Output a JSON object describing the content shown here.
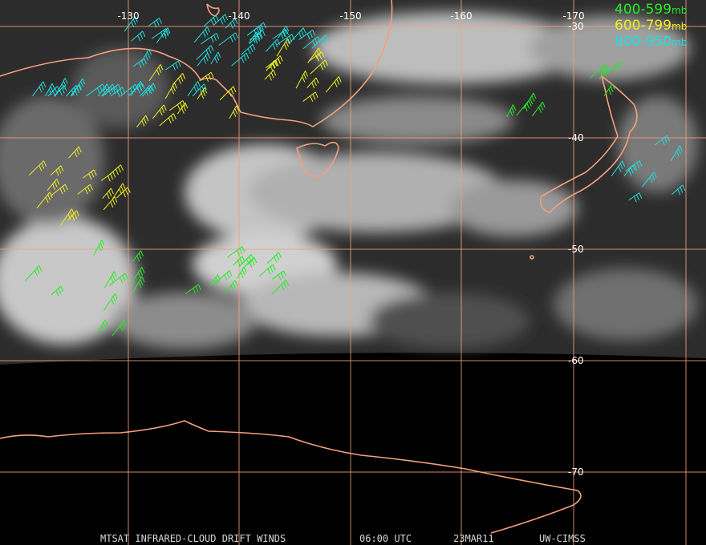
{
  "title_bar": {
    "product": "MTSAT INFRARED-CLOUD DRIFT WINDS",
    "time": "06:00 UTC",
    "date": "23MAR11",
    "source": "UW-CIMSS"
  },
  "longitude_labels": [
    "-130",
    "-140",
    "-150",
    "-160",
    "-170"
  ],
  "latitude_labels": [
    "-30",
    "-40",
    "-50",
    "-60",
    "-70"
  ],
  "legend": [
    {
      "range": "400-599",
      "unit": "mb",
      "color": "#22ee22"
    },
    {
      "range": "600-799",
      "unit": "mb",
      "color": "#eeee22"
    },
    {
      "range": "800-950",
      "unit": "mb",
      "color": "#22dddd"
    }
  ]
}
